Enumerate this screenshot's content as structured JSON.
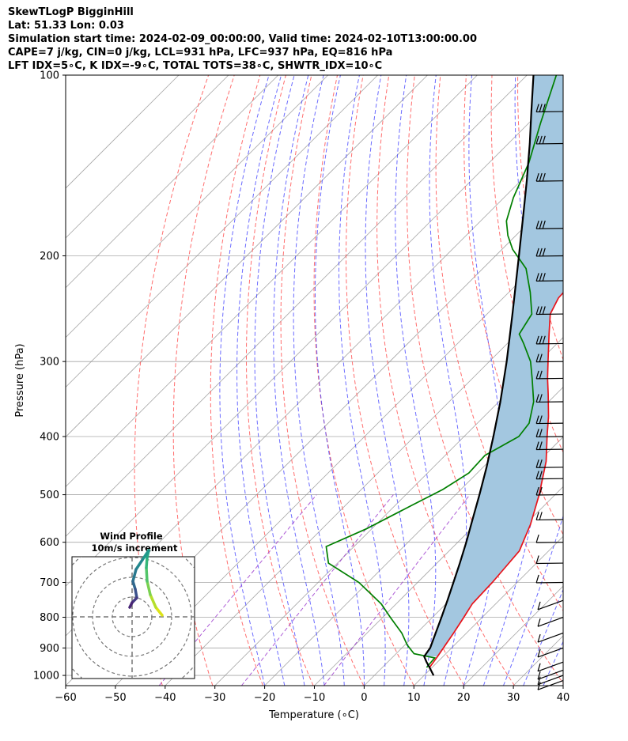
{
  "header": {
    "line1": "SkewTLogP BigginHill",
    "line2": "Lat: 51.33   Lon: 0.03",
    "line3": "Simulation start time: 2024-02-09_00:00:00, Valid time: 2024-02-10T13:00:00.00",
    "line4": "CAPE=7 j/kg, CIN=0 j/kg, LCL=931 hPa, LFC=937 hPa, EQ=816 hPa",
    "line5": "LFT IDX=5∘C, K IDX=-9∘C, TOTAL TOTS=38∘C, SHWTR_IDX=10∘C"
  },
  "chart_data": {
    "type": "line",
    "xlabel": "Temperature (∘C)",
    "ylabel": "Pressure (hPa)",
    "xlim": [
      -60,
      40
    ],
    "ylim": [
      1040,
      100
    ],
    "y_scale": "log",
    "grid": true,
    "xticks": [
      "−60",
      "−50",
      "−40",
      "−30",
      "−20",
      "−10",
      "0",
      "10",
      "20",
      "30",
      "40"
    ],
    "yticks": [
      "100",
      "200",
      "300",
      "400",
      "500",
      "600",
      "700",
      "800",
      "900",
      "1000"
    ],
    "series": [
      {
        "color": "#e8141b",
        "p": [
          970,
          930,
          850,
          800,
          760,
          700,
          670,
          620,
          560,
          500,
          440,
          400,
          370,
          340,
          320,
          300,
          270,
          250,
          235,
          210,
          190,
          175,
          160,
          145,
          130,
          115,
          100
        ],
        "t": [
          9.5,
          8.9,
          7.4,
          6.3,
          5.3,
          5.0,
          4.7,
          4.1,
          1.0,
          -3.2,
          -8.5,
          -13.3,
          -17.1,
          -21.6,
          -24.9,
          -28.2,
          -33.5,
          -37.3,
          -38.9,
          -39.4,
          -40.5,
          -43.2,
          -47.0,
          -52.0,
          -55.4,
          -59.0,
          -64.1
        ]
      },
      {
        "color": "#007f00",
        "p": [
          970,
          935,
          920,
          890,
          850,
          800,
          760,
          700,
          650,
          610,
          570,
          520,
          490,
          460,
          430,
          400,
          380,
          350,
          320,
          300,
          280,
          270,
          250,
          230,
          210,
          195,
          185,
          175,
          160,
          140,
          120,
          100
        ],
        "t": [
          8.9,
          8.6,
          3.6,
          0.5,
          -3.0,
          -8.5,
          -13.0,
          -21.8,
          -31.8,
          -35.6,
          -31.1,
          -26.6,
          -23.6,
          -21.7,
          -22.0,
          -19.0,
          -19.6,
          -23.0,
          -28.0,
          -31.7,
          -36.7,
          -39.5,
          -41.0,
          -45.7,
          -51.3,
          -57.9,
          -61.6,
          -64.8,
          -68.1,
          -72.0,
          -77.7,
          -84.1
        ]
      },
      {
        "color": "#000000",
        "p": [
          1000,
          970,
          950,
          930,
          900,
          850,
          800,
          750,
          700,
          650,
          600,
          550,
          500,
          450,
          400,
          350,
          300,
          250,
          200,
          170,
          150,
          130,
          115,
          100
        ],
        "t": [
          11.9,
          9.5,
          7.8,
          6.2,
          5.7,
          3.8,
          1.8,
          -0.4,
          -2.8,
          -5.4,
          -8.3,
          -11.6,
          -15.2,
          -19.3,
          -24.1,
          -29.7,
          -36.5,
          -44.9,
          -55.3,
          -62.9,
          -68.8,
          -75.7,
          -81.8,
          -88.7
        ]
      }
    ],
    "cape_fill_color": "#a3c7e0",
    "isotherm_color": "#888888",
    "dry_adiabat_color": "#ff5555",
    "moist_adiabat_color": "#3a3aff",
    "mixing_ratio_color": "#9933cc",
    "wind_barb_pressures": [
      1020,
      1000,
      980,
      950,
      900,
      850,
      800,
      750,
      700,
      650,
      600,
      550,
      500,
      470,
      450,
      420,
      400,
      380,
      350,
      320,
      300,
      280,
      250,
      220,
      200,
      180,
      150,
      130,
      115
    ],
    "hodograph": {
      "title": "Wind Profile",
      "subtitle": "10m/s increment"
    }
  }
}
